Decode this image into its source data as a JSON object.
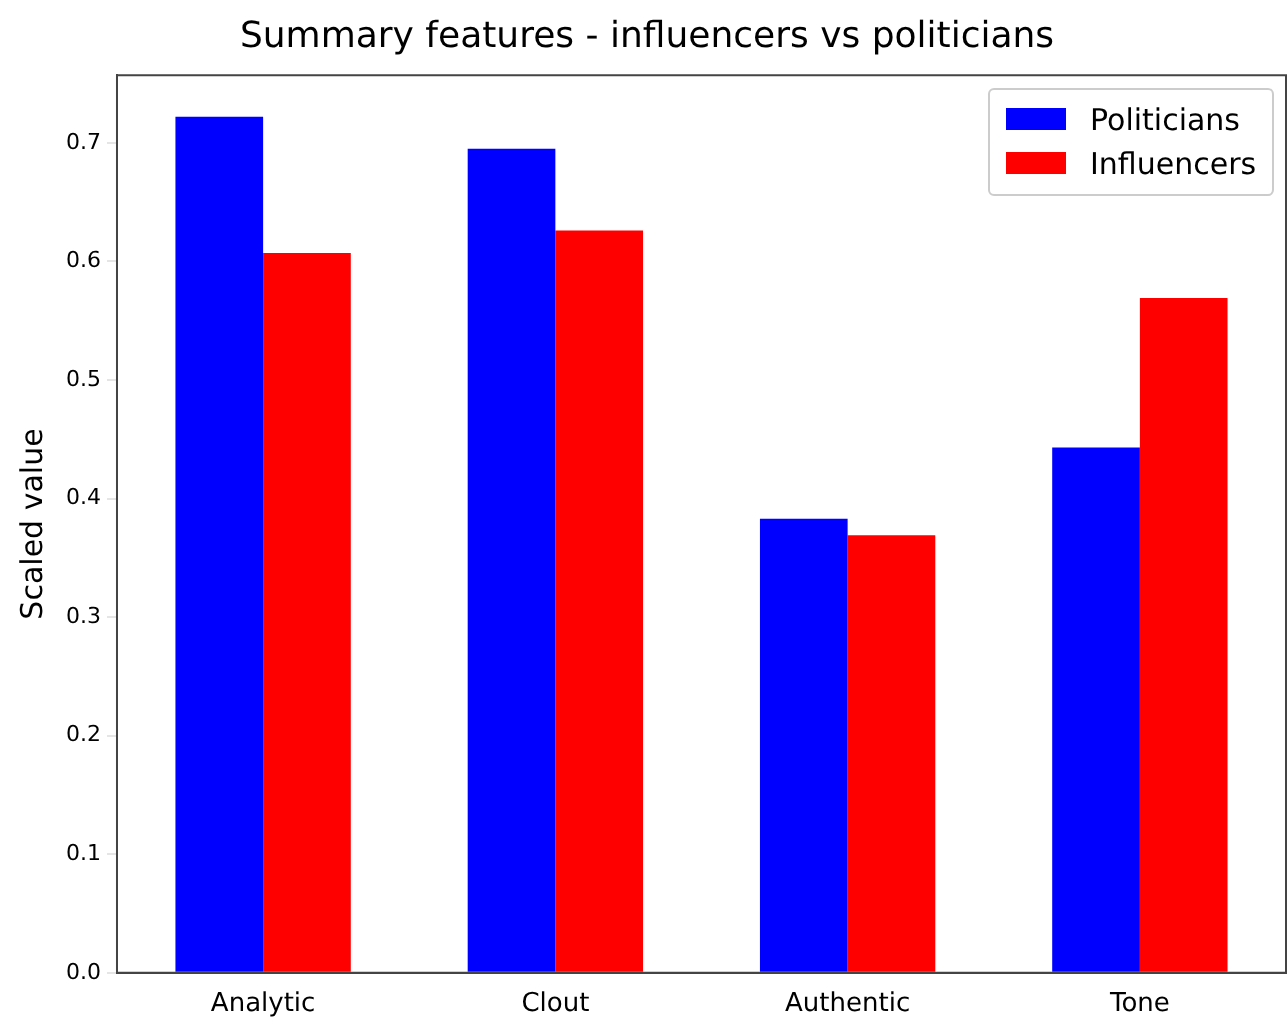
{
  "chart_data": {
    "type": "bar",
    "title": "Summary features - influencers vs politicians",
    "ylabel": "Scaled value",
    "categories": [
      "Analytic",
      "Clout",
      "Authentic",
      "Tone"
    ],
    "series": [
      {
        "name": "Politicians",
        "color": "#0000ff",
        "values": [
          0.722,
          0.695,
          0.383,
          0.443
        ]
      },
      {
        "name": "Influencers",
        "color": "#ff0000",
        "values": [
          0.607,
          0.626,
          0.369,
          0.569
        ]
      }
    ],
    "ylim": [
      0,
      0.757
    ],
    "yticks": [
      {
        "value": 0,
        "label": "0.0"
      },
      0.1,
      0.2,
      0.3,
      0.4,
      0.5,
      0.6,
      0.7
    ],
    "grid": false,
    "legend": "top right"
  }
}
